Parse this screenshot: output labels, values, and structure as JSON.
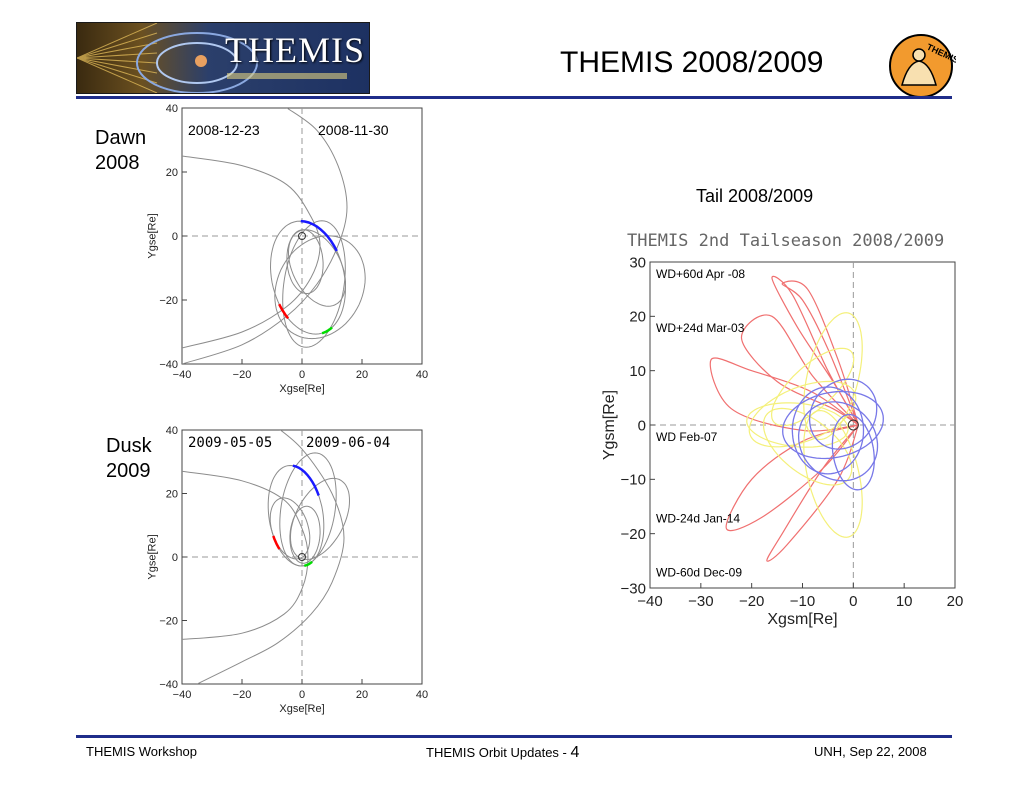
{
  "header": {
    "logo_text": "THEMIS",
    "title": "THEMIS 2008/2009",
    "badge_text": "THEMIS"
  },
  "left_top": {
    "label_line1": "Dawn",
    "label_line2": "2008"
  },
  "left_bottom": {
    "label_line1": "Dusk",
    "label_line2": "2009"
  },
  "right": {
    "title": "Tail 2008/2009"
  },
  "footer": {
    "left": "THEMIS Workshop",
    "center": "THEMIS Orbit Updates - ",
    "page": "4",
    "right": "UNH, Sep 22, 2008"
  },
  "colors": {
    "rule": "#1f2d8a",
    "orbit_gray": "#8c8c8c",
    "probe_blue": "#1a1aff",
    "probe_red": "#ff0000",
    "probe_green": "#00dd00",
    "tail_red": "#f07070",
    "tail_yellow": "#f4f07a",
    "tail_blue": "#7878e8"
  },
  "chart_data": [
    {
      "type": "line",
      "title": "",
      "annotations": [
        "2008-12-23",
        "2008-11-30"
      ],
      "xlabel": "Xgse[Re]",
      "ylabel": "Ygse[Re]",
      "xlim": [
        -40,
        40
      ],
      "ylim": [
        -40,
        40
      ],
      "xticks": [
        -40,
        -20,
        0,
        20,
        40
      ],
      "yticks": [
        -40,
        -20,
        0,
        20,
        40
      ],
      "grid": "dashed lines at 0",
      "orbits": [
        {
          "cx": 2,
          "cy": -13,
          "a": 12,
          "b": 18,
          "rot": 15
        },
        {
          "cx": 4,
          "cy": -15,
          "a": 10,
          "b": 20,
          "rot": -10
        },
        {
          "cx": 5,
          "cy": -10,
          "a": 8,
          "b": 13,
          "rot": 30
        },
        {
          "cx": 6,
          "cy": -16,
          "a": 14,
          "b": 17,
          "rot": -35
        },
        {
          "cx": 1,
          "cy": -8,
          "a": 6,
          "b": 10,
          "rot": 5
        }
      ],
      "boundaries": [
        {
          "x": [
            -40,
            -20,
            -5,
            3,
            6,
            3,
            -5,
            -20,
            -40
          ],
          "y": [
            25,
            22,
            16,
            6,
            -3,
            -13,
            -22,
            -30,
            -35
          ]
        },
        {
          "x": [
            -5,
            5,
            12,
            15,
            12,
            5,
            -5,
            -20,
            -40
          ],
          "y": [
            40,
            33,
            22,
            9,
            -3,
            -15,
            -25,
            -34,
            -40
          ]
        }
      ]
    },
    {
      "type": "line",
      "title": "",
      "annotations": [
        "2009-05-05",
        "2009-06-04"
      ],
      "xlabel": "Xgse[Re]",
      "ylabel": "Ygse[Re]",
      "xlim": [
        -40,
        40
      ],
      "ylim": [
        -40,
        40
      ],
      "xticks": [
        -40,
        -20,
        0,
        20,
        40
      ],
      "yticks": [
        -40,
        -20,
        0,
        20,
        40
      ],
      "grid": "dashed lines at 0",
      "orbits": [
        {
          "cx": -2,
          "cy": 13,
          "a": 9,
          "b": 16,
          "rot": 10
        },
        {
          "cx": 2,
          "cy": 15,
          "a": 9,
          "b": 18,
          "rot": -10
        },
        {
          "cx": 6,
          "cy": 12,
          "a": 8,
          "b": 14,
          "rot": -30
        },
        {
          "cx": -4,
          "cy": 9,
          "a": 6,
          "b": 10,
          "rot": 20
        },
        {
          "cx": 1,
          "cy": 7,
          "a": 5,
          "b": 9,
          "rot": -5
        }
      ],
      "boundaries": [
        {
          "x": [
            -40,
            -20,
            -6,
            0,
            2,
            0,
            -6,
            -20,
            -40
          ],
          "y": [
            27,
            24,
            18,
            9,
            0,
            -10,
            -18,
            -24,
            -26
          ]
        },
        {
          "x": [
            -10,
            0,
            10,
            14,
            10,
            3,
            -8,
            -20,
            -35
          ],
          "y": [
            42,
            34,
            20,
            6,
            -8,
            -18,
            -27,
            -33,
            -40
          ]
        }
      ]
    },
    {
      "type": "line",
      "title": "THEMIS 2nd Tailseason 2008/2009",
      "xlabel": "Xgsm[Re]",
      "ylabel": "Ygsm[Re]",
      "xlim": [
        -40,
        20
      ],
      "ylim": [
        -30,
        30
      ],
      "xticks": [
        -40,
        -30,
        -20,
        -10,
        0,
        10,
        20
      ],
      "yticks": [
        -30,
        -20,
        -10,
        0,
        10,
        20,
        30
      ],
      "grid": "dashed lines at 0",
      "labels": [
        {
          "text": "WD+60d Apr -08",
          "y": 28
        },
        {
          "text": "WD+24d Mar-03",
          "y": 18
        },
        {
          "text": "WD Feb-07",
          "y": -2
        },
        {
          "text": "WD-24d Jan-14",
          "y": -17
        },
        {
          "text": "WD-60d Dec-09",
          "y": -27
        }
      ],
      "orbits_blue": [
        {
          "cx": -4,
          "cy": 0,
          "a": 10,
          "b": 6,
          "rot": 10
        },
        {
          "cx": -3,
          "cy": -3,
          "a": 8,
          "b": 7,
          "rot": -30
        },
        {
          "cx": -2,
          "cy": 2,
          "a": 7,
          "b": 6,
          "rot": 40
        },
        {
          "cx": 0,
          "cy": -5,
          "a": 4,
          "b": 7,
          "rot": 10
        },
        {
          "cx": -5,
          "cy": -1,
          "a": 7,
          "b": 8,
          "rot": 0
        }
      ],
      "orbits_yellow": [
        {
          "cx": -10,
          "cy": 2,
          "a": 11,
          "b": 5,
          "rot": 20
        },
        {
          "cx": -8,
          "cy": 7,
          "a": 10,
          "b": 4,
          "rot": 40
        },
        {
          "cx": -9,
          "cy": -4,
          "a": 10,
          "b": 5,
          "rot": -35
        },
        {
          "cx": -4,
          "cy": 9,
          "a": 5,
          "b": 12,
          "rot": -15
        },
        {
          "cx": -4,
          "cy": -9,
          "a": 5,
          "b": 12,
          "rot": 15
        },
        {
          "cx": -11,
          "cy": 0,
          "a": 10,
          "b": 4,
          "rot": -5
        }
      ],
      "orbits_red": [
        {
          "x": [
            1,
            -8,
            -20,
            -28,
            -24,
            -10,
            1
          ],
          "y": [
            0,
            6,
            10,
            12,
            3,
            -1,
            0
          ]
        },
        {
          "x": [
            1,
            -10,
            -20,
            -25,
            -18,
            -6,
            1
          ],
          "y": [
            0,
            -3,
            -10,
            -19,
            -17,
            -8,
            0
          ]
        },
        {
          "x": [
            1,
            -5,
            -12,
            -16,
            -11,
            -4,
            1
          ],
          "y": [
            0,
            10,
            24,
            27,
            18,
            8,
            0
          ]
        },
        {
          "x": [
            1,
            -6,
            -14,
            -17,
            -13,
            -3,
            1
          ],
          "y": [
            0,
            -8,
            -20,
            -25,
            -22,
            -10,
            0
          ]
        },
        {
          "x": [
            1,
            -8,
            -16,
            -22,
            -15,
            -4,
            1
          ],
          "y": [
            0,
            9,
            20,
            16,
            8,
            3,
            0
          ]
        },
        {
          "x": [
            1,
            -5,
            -10,
            -14,
            -9,
            -3,
            1
          ],
          "y": [
            0,
            14,
            23,
            26,
            25,
            12,
            0
          ]
        }
      ]
    }
  ]
}
